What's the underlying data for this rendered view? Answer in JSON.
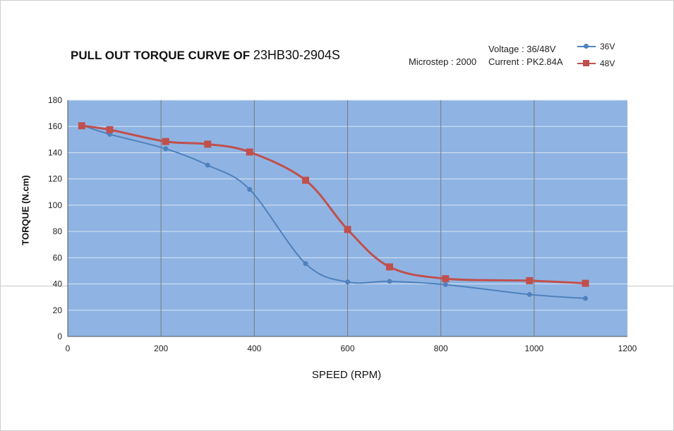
{
  "title": {
    "main": "PULL OUT TORQUE CURVE OF",
    "model": "23HB30-2904S"
  },
  "info": {
    "microstep": "Microstep : 2000",
    "voltage": "Voltage : 36/48V",
    "current": "Current : PK2.84A"
  },
  "colors": {
    "plot_bg": "#8fb4e3",
    "s36": "#4f81bd",
    "s48": "#c0504d",
    "vgrid": "#7a7a7a",
    "hgrid": "#d9e4f5"
  },
  "chart_data": {
    "type": "line",
    "xlabel": "SPEED (RPM)",
    "ylabel": "TORQUE (N.cm)",
    "xlim": [
      0,
      1200
    ],
    "ylim": [
      0,
      180
    ],
    "xticks": [
      0,
      200,
      400,
      600,
      800,
      1000,
      1200
    ],
    "yticks": [
      0,
      20,
      40,
      60,
      80,
      100,
      120,
      140,
      160,
      180
    ],
    "legend_position": "top-right",
    "grid": true,
    "series": [
      {
        "name": "36V",
        "marker": "circle",
        "x": [
          30,
          90,
          210,
          300,
          390,
          510,
          600,
          690,
          810,
          990,
          1110
        ],
        "y": [
          161,
          154,
          143,
          130.5,
          112,
          55.5,
          41.5,
          42,
          39.5,
          32,
          29
        ]
      },
      {
        "name": "48V",
        "marker": "square",
        "x": [
          30,
          90,
          210,
          300,
          390,
          510,
          600,
          690,
          810,
          990,
          1110
        ],
        "y": [
          160.5,
          157.5,
          148.5,
          146.5,
          140.5,
          119,
          81.5,
          53,
          44,
          42.5,
          40.5
        ]
      }
    ]
  }
}
